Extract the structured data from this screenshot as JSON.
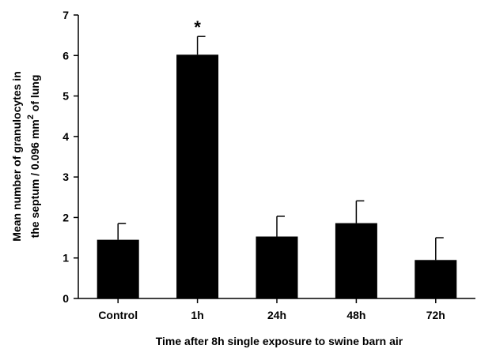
{
  "chart_data": {
    "type": "bar",
    "title": "",
    "xlabel": "Time after 8h single exposure to swine barn air",
    "ylabel": {
      "line1": "Mean number of granulocytes in",
      "line2_prefix": "the septum / 0.096 mm",
      "line2_sup": "2",
      "line2_suffix": " of lung"
    },
    "ylim": [
      0,
      7
    ],
    "yticks": [
      "0",
      "1",
      "2",
      "3",
      "4",
      "5",
      "6",
      "7"
    ],
    "categories": [
      "Control",
      "1h",
      "24h",
      "48h",
      "72h"
    ],
    "values": [
      1.45,
      6.02,
      1.53,
      1.86,
      0.95
    ],
    "error_upper": [
      0.4,
      0.45,
      0.5,
      0.55,
      0.55
    ],
    "annotations": [
      {
        "category": "1h",
        "text": "*"
      }
    ],
    "bar_color": "#000000",
    "grid": false,
    "legend": "none"
  }
}
